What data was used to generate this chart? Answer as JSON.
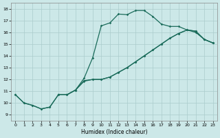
{
  "background_color": "#cce8e8",
  "grid_color": "#aacccc",
  "line_color": "#1a6b5a",
  "xlabel": "Humidex (Indice chaleur)",
  "xlim": [
    -0.5,
    23.5
  ],
  "ylim": [
    8.5,
    18.5
  ],
  "yticks": [
    9,
    10,
    11,
    12,
    13,
    14,
    15,
    16,
    17,
    18
  ],
  "xticks": [
    0,
    1,
    2,
    3,
    4,
    5,
    6,
    7,
    8,
    9,
    10,
    11,
    12,
    13,
    14,
    15,
    16,
    17,
    18,
    19,
    20,
    21,
    22,
    23
  ],
  "line1_x": [
    0,
    1,
    2,
    3,
    4,
    5,
    6,
    7,
    8,
    9,
    10,
    11,
    12,
    13,
    14,
    15,
    16,
    17,
    18,
    19,
    20,
    21,
    22,
    23
  ],
  "line1_y": [
    10.7,
    10.0,
    9.8,
    9.5,
    9.65,
    10.7,
    10.7,
    11.1,
    11.9,
    12.0,
    12.0,
    12.2,
    12.6,
    13.0,
    13.5,
    14.0,
    14.5,
    15.0,
    15.5,
    15.9,
    16.2,
    16.1,
    15.4,
    15.1
  ],
  "line2_x": [
    0,
    1,
    2,
    3,
    4,
    5,
    6,
    7,
    8,
    9,
    10,
    11,
    12,
    13,
    14,
    15,
    16,
    17,
    18,
    19,
    20,
    21,
    22,
    23
  ],
  "line2_y": [
    10.7,
    10.0,
    9.8,
    9.5,
    9.65,
    10.7,
    10.7,
    11.1,
    12.1,
    13.85,
    16.55,
    16.8,
    17.55,
    17.5,
    17.85,
    17.85,
    17.35,
    16.7,
    16.5,
    16.5,
    16.2,
    16.0,
    15.4,
    15.1
  ],
  "line3_x": [
    5,
    6,
    7,
    8,
    9,
    10,
    11,
    12,
    13,
    14,
    15,
    16,
    17,
    18,
    19,
    20,
    21,
    22,
    23
  ],
  "line3_y": [
    10.7,
    10.7,
    11.1,
    11.85,
    12.0,
    12.0,
    12.2,
    12.6,
    13.0,
    13.5,
    14.0,
    14.5,
    15.0,
    15.5,
    15.9,
    16.2,
    16.1,
    15.4,
    15.1
  ]
}
